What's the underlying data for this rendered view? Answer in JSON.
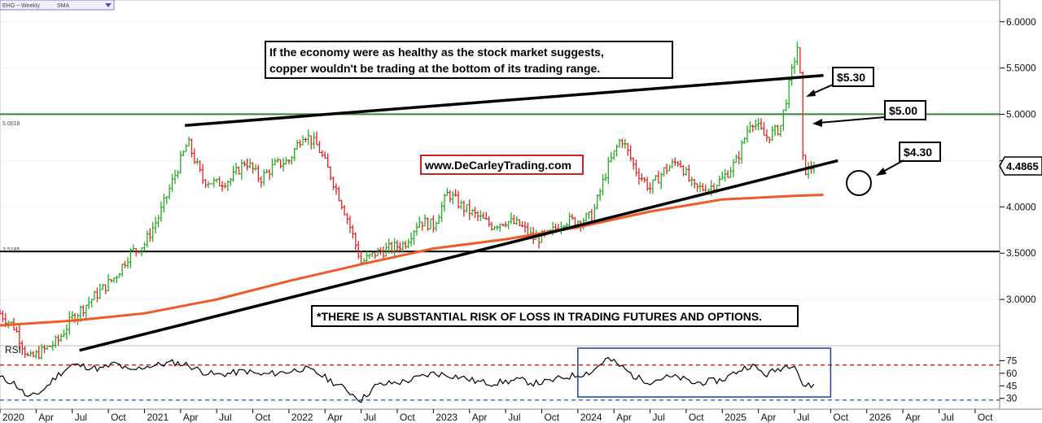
{
  "header": {
    "symbol_label": "EHG ~ Weekly",
    "study_label": "SMA",
    "dropdown_icon": "chevron-down-icon"
  },
  "annotations": {
    "headline_line1": "If the economy were as healthy as the stock market suggests,",
    "headline_line2": "copper wouldn't be trading at the bottom of its trading range.",
    "website": "www.DeCarleyTrading.com",
    "disclaimer": "*THERE IS A SUBSTANTIAL RISK OF LOSS IN TRADING FUTURES AND OPTIONS.",
    "callout_530": "$5.30",
    "callout_500": "$5.00",
    "callout_430": "$4.30",
    "rsi_label": "RSI",
    "level_500_small": "5.0018",
    "level_350_small": "3.5185",
    "last_price": "4.4865"
  },
  "colors": {
    "up_bar": "#22aa22",
    "down_bar": "#dd2222",
    "sma": "#f05a28",
    "level_500": "#2e8b2e",
    "rsi_upper": "#cc2222",
    "rsi_lower": "#3377cc",
    "rsi_box": "#1f3fa8",
    "website_border": "#cc2222"
  },
  "chart_data": {
    "type": "line",
    "title": "EHG ~ Weekly",
    "ylim": [
      2.5,
      6.2
    ],
    "yticks": [
      "6.0000",
      "5.5000",
      "5.0000",
      "4.5000",
      "4.0000",
      "3.5000",
      "3.0000"
    ],
    "xticks": [
      "2020",
      "Apr",
      "Jul",
      "Oct",
      "2021",
      "Apr",
      "Jul",
      "Oct",
      "2022",
      "Apr",
      "Jul",
      "Oct",
      "2023",
      "Apr",
      "Jul",
      "Oct",
      "2024",
      "Apr",
      "Jul",
      "Oct",
      "2025",
      "Apr",
      "Jul",
      "Oct",
      "2026",
      "Apr",
      "Jul",
      "Oct"
    ],
    "horizontal_levels": [
      5.0018,
      3.5185
    ],
    "price": {
      "x": [
        2020.0,
        2020.1,
        2020.2,
        2020.3,
        2020.4,
        2020.5,
        2020.6,
        2020.7,
        2020.8,
        2020.9,
        2021.0,
        2021.1,
        2021.2,
        2021.3,
        2021.4,
        2021.5,
        2021.6,
        2021.7,
        2021.8,
        2021.9,
        2022.0,
        2022.1,
        2022.2,
        2022.3,
        2022.4,
        2022.5,
        2022.6,
        2022.7,
        2022.8,
        2022.9,
        2023.0,
        2023.1,
        2023.2,
        2023.3,
        2023.4,
        2023.5,
        2023.6,
        2023.7,
        2023.8,
        2023.9,
        2024.0,
        2024.1,
        2024.2,
        2024.3,
        2024.4,
        2024.5,
        2024.6,
        2024.7,
        2024.8,
        2024.9,
        2025.0,
        2025.1,
        2025.2,
        2025.3,
        2025.4,
        2025.5,
        2025.53,
        2025.56,
        2025.6,
        2025.65
      ],
      "y": [
        2.85,
        2.7,
        2.35,
        2.45,
        2.55,
        2.8,
        2.95,
        3.1,
        3.25,
        3.5,
        3.6,
        3.9,
        4.3,
        4.7,
        4.3,
        4.25,
        4.3,
        4.5,
        4.3,
        4.45,
        4.5,
        4.8,
        4.65,
        4.3,
        3.9,
        3.4,
        3.5,
        3.55,
        3.6,
        3.85,
        3.8,
        4.15,
        4.0,
        3.9,
        3.8,
        3.85,
        3.8,
        3.65,
        3.7,
        3.85,
        3.85,
        3.9,
        4.4,
        4.75,
        4.4,
        4.2,
        4.4,
        4.5,
        4.2,
        4.2,
        4.3,
        4.5,
        4.95,
        4.75,
        4.85,
        5.6,
        5.8,
        4.4,
        4.4,
        4.4865
      ]
    },
    "sma": {
      "name": "SMA",
      "x": [
        2020.0,
        2020.5,
        2021.0,
        2021.5,
        2022.0,
        2022.5,
        2023.0,
        2023.5,
        2024.0,
        2024.5,
        2025.0,
        2025.5,
        2025.7
      ],
      "y": [
        2.72,
        2.77,
        2.85,
        3.0,
        3.2,
        3.38,
        3.55,
        3.65,
        3.78,
        3.95,
        4.08,
        4.12,
        4.13
      ]
    },
    "trendlines": [
      {
        "x": [
          2020.55,
          2025.8
        ],
        "y": [
          2.45,
          4.5
        ]
      },
      {
        "x": [
          2021.28,
          2025.7
        ],
        "y": [
          4.88,
          5.42
        ]
      }
    ],
    "rsi": {
      "name": "RSI",
      "ylim": [
        20,
        90
      ],
      "yticks": [
        75,
        60,
        45,
        30
      ],
      "upper_level": 70,
      "lower_level": 28,
      "x": [
        2020.0,
        2020.1,
        2020.2,
        2020.3,
        2020.4,
        2020.5,
        2020.6,
        2020.7,
        2020.8,
        2020.9,
        2021.0,
        2021.1,
        2021.2,
        2021.3,
        2021.4,
        2021.5,
        2021.6,
        2021.7,
        2021.8,
        2021.9,
        2022.0,
        2022.1,
        2022.2,
        2022.3,
        2022.4,
        2022.5,
        2022.6,
        2022.7,
        2022.8,
        2022.9,
        2023.0,
        2023.1,
        2023.2,
        2023.3,
        2023.4,
        2023.5,
        2023.6,
        2023.7,
        2023.8,
        2023.9,
        2024.0,
        2024.1,
        2024.2,
        2024.3,
        2024.4,
        2024.5,
        2024.6,
        2024.7,
        2024.8,
        2024.9,
        2025.0,
        2025.1,
        2025.2,
        2025.3,
        2025.4,
        2025.5,
        2025.56,
        2025.6,
        2025.65
      ],
      "y": [
        55,
        48,
        30,
        40,
        58,
        70,
        68,
        65,
        72,
        62,
        68,
        70,
        73,
        70,
        62,
        58,
        60,
        63,
        58,
        60,
        62,
        66,
        60,
        50,
        40,
        28,
        45,
        48,
        50,
        55,
        60,
        58,
        55,
        50,
        48,
        50,
        52,
        48,
        50,
        55,
        58,
        62,
        78,
        68,
        55,
        50,
        55,
        55,
        48,
        50,
        52,
        62,
        70,
        58,
        66,
        72,
        45,
        45,
        46
      ]
    },
    "rsi_highlight": {
      "x": [
        2024.0,
        2025.75
      ]
    }
  }
}
